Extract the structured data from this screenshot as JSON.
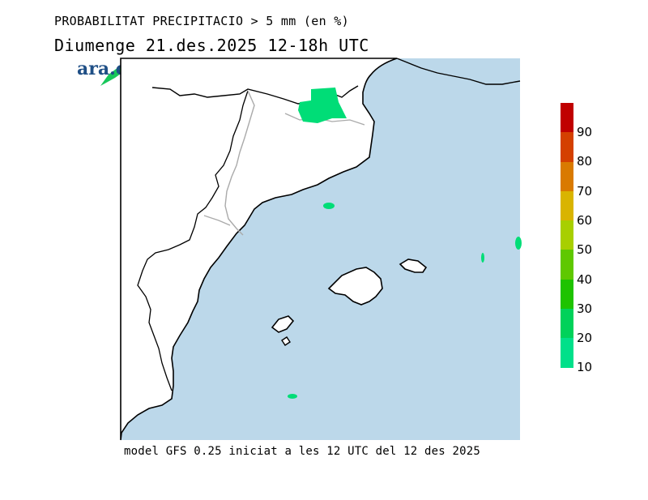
{
  "title_line1": "PROBABILITAT PRECIPITACIO > 5 mm (en %)",
  "title_line2": "Diumenge  21.des.2025 12-18h UTC",
  "logo_text": "ara.cat",
  "footer": "model GFS 0.25 iniciat a les 12 UTC del 12 des 2025",
  "colors": {
    "sea": "#bcd8ea",
    "land": "#ffffff",
    "coast": "#000000",
    "border": "#aaaaaa",
    "rain": "#00dd77"
  },
  "legend": {
    "labels": [
      "90",
      "80",
      "70",
      "60",
      "50",
      "40",
      "30",
      "20",
      "10"
    ],
    "colors": [
      "#c00000",
      "#d44000",
      "#d97a00",
      "#d9b400",
      "#a8cf00",
      "#5fc800",
      "#1ec300",
      "#00d25a",
      "#00e08a"
    ]
  }
}
